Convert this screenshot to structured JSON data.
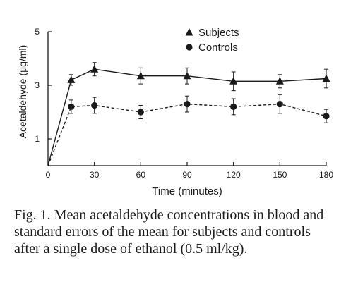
{
  "chart_data": {
    "type": "line",
    "xlabel": "Time (minutes)",
    "ylabel": "Acetaldehyde (μg/ml)",
    "xlim": [
      0,
      180
    ],
    "ylim": [
      0,
      5
    ],
    "x_ticks": [
      0,
      30,
      60,
      90,
      120,
      150,
      180
    ],
    "y_ticks": [
      1,
      3,
      5
    ],
    "grid": false,
    "legend_position": "top-right",
    "series": [
      {
        "name": "Subjects",
        "marker": "triangle",
        "line_style": "solid",
        "x": [
          0,
          15,
          30,
          60,
          90,
          120,
          150,
          180
        ],
        "y": [
          0,
          3.2,
          3.6,
          3.35,
          3.35,
          3.15,
          3.15,
          3.25
        ],
        "error": [
          0,
          0.2,
          0.25,
          0.3,
          0.3,
          0.35,
          0.25,
          0.35
        ]
      },
      {
        "name": "Controls",
        "marker": "circle",
        "line_style": "dashed",
        "x": [
          0,
          15,
          30,
          60,
          90,
          120,
          150,
          180
        ],
        "y": [
          0,
          2.2,
          2.25,
          2.0,
          2.3,
          2.2,
          2.3,
          1.85
        ],
        "error": [
          0,
          0.25,
          0.3,
          0.25,
          0.3,
          0.3,
          0.35,
          0.25
        ]
      }
    ]
  },
  "caption": "Fig. 1. Mean acetaldehyde concentrations in blood and standard errors of the mean for subjects and controls after a single dose of ethanol (0.5 ml/kg)."
}
